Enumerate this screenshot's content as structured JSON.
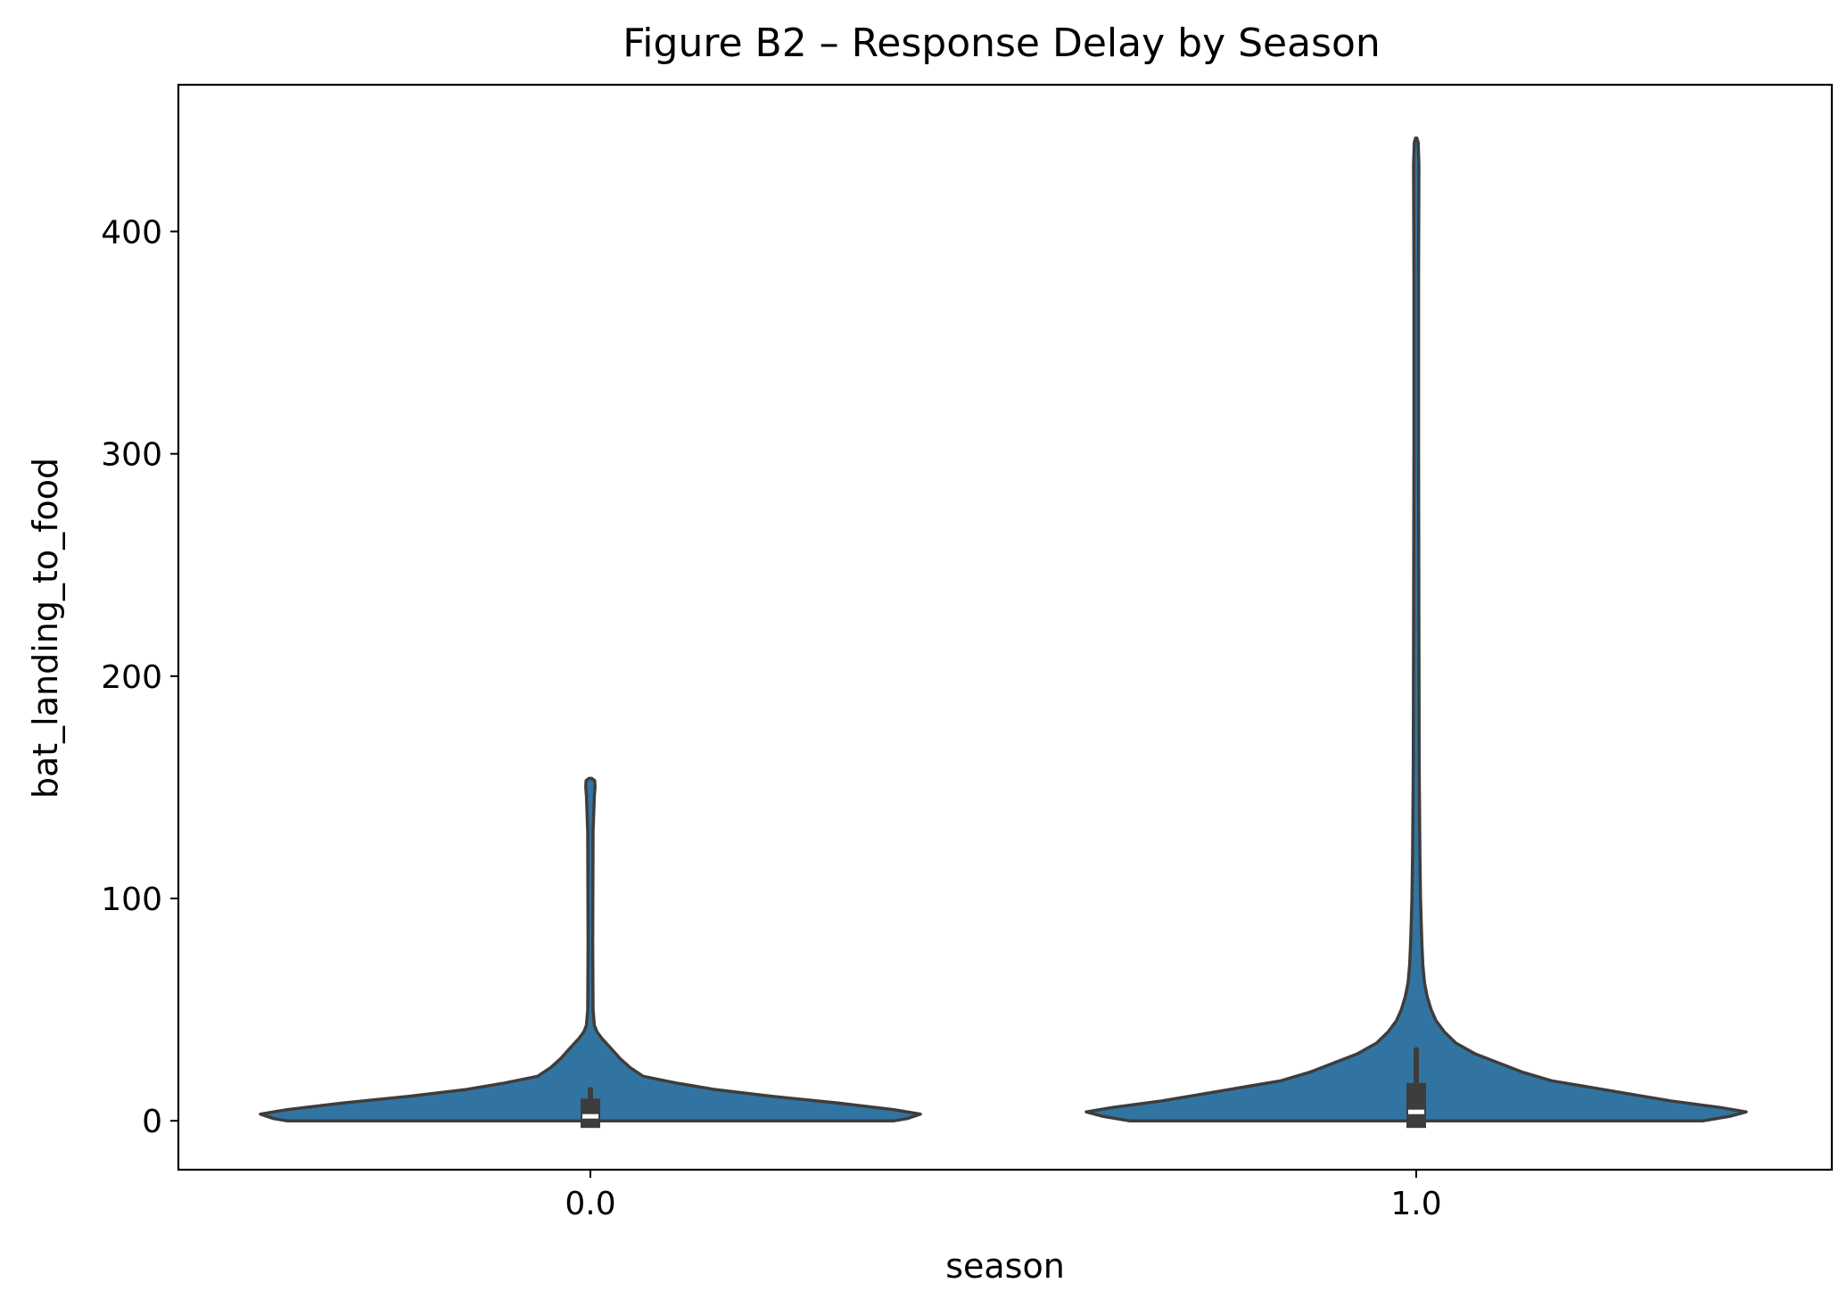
{
  "chart_data": {
    "type": "violin",
    "title": "Figure B2 – Response Delay by Season",
    "xlabel": "season",
    "ylabel": "bat_landing_to_food",
    "categories": [
      "0.0",
      "1.0"
    ],
    "ylim": [
      -22,
      466
    ],
    "yticks": [
      0,
      100,
      200,
      300,
      400
    ],
    "grid": false,
    "legend": "none",
    "fill_color": "#3274a1",
    "edge_color": "#3d3d3d",
    "series": [
      {
        "category": "0.0",
        "min": 0,
        "max": 154,
        "q1": 0,
        "median": 2,
        "q3": 10,
        "whisker_high": 14,
        "density_profile": [
          [
            0,
            0.92
          ],
          [
            1,
            0.96
          ],
          [
            3,
            1.0
          ],
          [
            5,
            0.92
          ],
          [
            8,
            0.75
          ],
          [
            11,
            0.55
          ],
          [
            14,
            0.38
          ],
          [
            17,
            0.26
          ],
          [
            20,
            0.16
          ],
          [
            24,
            0.12
          ],
          [
            28,
            0.09
          ],
          [
            33,
            0.06
          ],
          [
            37,
            0.035
          ],
          [
            40,
            0.02
          ],
          [
            43,
            0.012
          ],
          [
            50,
            0.008
          ],
          [
            80,
            0.007
          ],
          [
            130,
            0.008
          ],
          [
            146,
            0.012
          ],
          [
            150,
            0.014
          ],
          [
            153,
            0.013
          ],
          [
            154,
            0.004
          ]
        ]
      },
      {
        "category": "1.0",
        "min": 0,
        "max": 442,
        "q1": 0,
        "median": 4,
        "q3": 17,
        "whisker_high": 32,
        "density_profile": [
          [
            0,
            0.87
          ],
          [
            2,
            0.95
          ],
          [
            4,
            1.0
          ],
          [
            6,
            0.92
          ],
          [
            9,
            0.77
          ],
          [
            14,
            0.57
          ],
          [
            18,
            0.41
          ],
          [
            22,
            0.32
          ],
          [
            26,
            0.25
          ],
          [
            30,
            0.18
          ],
          [
            35,
            0.12
          ],
          [
            40,
            0.085
          ],
          [
            45,
            0.06
          ],
          [
            50,
            0.045
          ],
          [
            56,
            0.033
          ],
          [
            62,
            0.025
          ],
          [
            70,
            0.02
          ],
          [
            80,
            0.017
          ],
          [
            90,
            0.015
          ],
          [
            100,
            0.013
          ],
          [
            120,
            0.011
          ],
          [
            160,
            0.009
          ],
          [
            220,
            0.008
          ],
          [
            300,
            0.007
          ],
          [
            380,
            0.007
          ],
          [
            430,
            0.008
          ],
          [
            440,
            0.006
          ],
          [
            442,
            0.002
          ]
        ]
      }
    ]
  }
}
